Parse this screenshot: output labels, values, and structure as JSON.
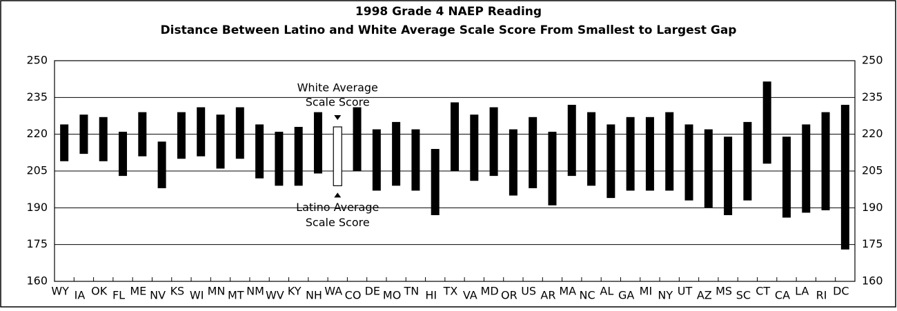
{
  "chart_data": {
    "type": "range_bar",
    "title": "1998 Grade 4 NAEP Reading",
    "subtitle": "Distance Between Latino and White Average Scale Score From Smallest to Largest Gap",
    "categories": [
      "WY",
      "IA",
      "OK",
      "FL",
      "ME",
      "NV",
      "KS",
      "WI",
      "MN",
      "MT",
      "NM",
      "WV",
      "KY",
      "NH",
      "WA",
      "CO",
      "DE",
      "MO",
      "TN",
      "HI",
      "TX",
      "VA",
      "MD",
      "OR",
      "US",
      "AR",
      "MA",
      "NC",
      "AL",
      "GA",
      "MI",
      "NY",
      "UT",
      "AZ",
      "MS",
      "SC",
      "CT",
      "CA",
      "LA",
      "RI",
      "DC"
    ],
    "low": [
      209,
      212,
      209,
      203,
      211,
      198,
      210,
      211,
      206,
      210,
      202,
      199,
      199,
      204,
      199,
      205,
      197,
      199,
      197,
      187,
      205,
      201,
      203,
      195,
      198,
      191,
      203,
      199,
      194,
      197,
      197,
      197,
      193,
      190,
      187,
      193,
      208,
      186,
      188,
      189,
      173
    ],
    "high": [
      224,
      228,
      227,
      221,
      229,
      217,
      229,
      231,
      228,
      231,
      224,
      221,
      223,
      229,
      223,
      231,
      222,
      225,
      222,
      214,
      233,
      228,
      231,
      222,
      227,
      221,
      232,
      229,
      224,
      227,
      227,
      229,
      224,
      222,
      219,
      225,
      241.5,
      219,
      224,
      229,
      232
    ],
    "color": "#000000",
    "highlight_category": "WA",
    "annotations": {
      "high": [
        "White Average",
        "Scale Score"
      ],
      "low": [
        "Latino Average",
        "Scale Score"
      ]
    },
    "ylim": [
      160,
      250
    ],
    "yticks": [
      160,
      175,
      190,
      205,
      220,
      235,
      250
    ],
    "grid": true,
    "mirror_y_axis": true
  }
}
